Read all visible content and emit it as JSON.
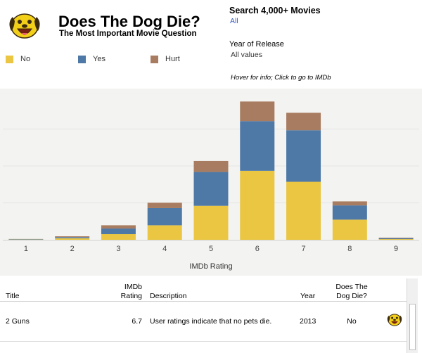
{
  "header": {
    "title": "Does The Dog Die?",
    "subtitle": "The Most Important Movie Question",
    "logo_icon": "dog-face-icon"
  },
  "legend": [
    {
      "label": "No",
      "color": "#eac642"
    },
    {
      "label": "Yes",
      "color": "#4e79a7"
    },
    {
      "label": "Hurt",
      "color": "#a87c60"
    }
  ],
  "filters": {
    "search_title": "Search 4,000+ Movies",
    "search_value": "All",
    "year_label": "Year of Release",
    "year_value": "All values"
  },
  "hover_note": "Hover for info; Click to go to IMDb",
  "chart_data": {
    "type": "bar",
    "stacked": true,
    "xlabel": "IMDb Rating",
    "ylabel": "",
    "categories": [
      "1",
      "2",
      "3",
      "4",
      "5",
      "6",
      "7",
      "8",
      "9"
    ],
    "series": [
      {
        "name": "No",
        "color": "#eac642",
        "values": [
          2,
          12,
          42,
          108,
          253,
          514,
          432,
          150,
          5
        ]
      },
      {
        "name": "Yes",
        "color": "#4e79a7",
        "values": [
          3,
          8,
          42,
          128,
          252,
          370,
          384,
          106,
          7
        ]
      },
      {
        "name": "Hurt",
        "color": "#a87c60",
        "values": [
          1,
          6,
          24,
          40,
          82,
          146,
          130,
          30,
          4
        ]
      }
    ],
    "ylim": [
      0,
      1100
    ],
    "gridlines": true
  },
  "table": {
    "columns": [
      "Title",
      "IMDb Rating",
      "Description",
      "Year",
      "Does The Dog Die?"
    ],
    "rows": [
      {
        "title": "2 Guns",
        "rating": "6.7",
        "description": "User ratings indicate that no pets die.",
        "year": "2013",
        "dies": "No"
      }
    ]
  }
}
